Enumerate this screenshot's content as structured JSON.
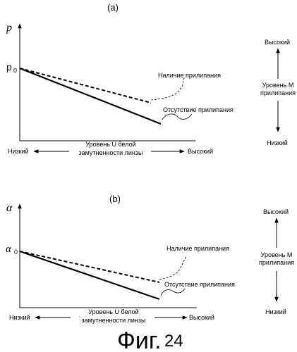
{
  "panel_a": {
    "label": "(a)",
    "y_axis_symbol": "p",
    "y_start_symbol": "p",
    "y_start_subscript": "0",
    "x_axis_label_line1": "Уровень U белой",
    "x_axis_label_line2": "замутненности линзы",
    "x_low": "Низкий",
    "x_high": "Высокий",
    "dashed_label": "Наличие прилипания",
    "solid_label": "Отсутствие прилипания",
    "m_high": "Высокий",
    "m_label_line1": "Уровень М",
    "m_label_line2": "прилипания",
    "m_low": "Низкий"
  },
  "panel_b": {
    "label": "(b)",
    "y_axis_symbol": "α",
    "y_start_symbol": "α",
    "y_start_subscript": "0",
    "x_axis_label_line1": "Уровень U белой",
    "x_axis_label_line2": "замутненности линзы",
    "x_low": "Низкий",
    "x_high": "Высокий",
    "dashed_label": "Наличие прилипания",
    "solid_label": "Отсутствие прилипания",
    "m_high": "Высокий",
    "m_label_line1": "Уровень М",
    "m_label_line2": "прилипания",
    "m_low": "Низкий"
  },
  "figure_caption": {
    "prefix": "Фиг.",
    "number": "24"
  }
}
